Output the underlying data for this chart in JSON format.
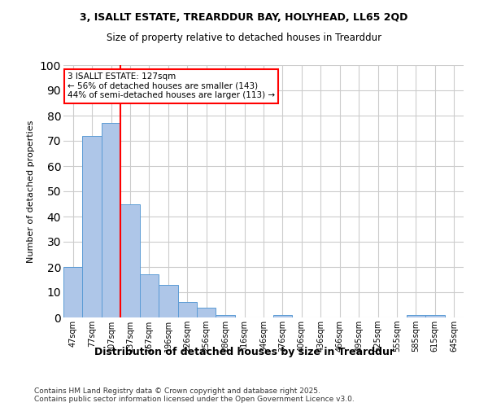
{
  "title1": "3, ISALLT ESTATE, TREARDDUR BAY, HOLYHEAD, LL65 2QD",
  "title2": "Size of property relative to detached houses in Trearddur",
  "xlabel": "Distribution of detached houses by size in Trearddur",
  "ylabel": "Number of detached properties",
  "bin_labels": [
    "47sqm",
    "77sqm",
    "107sqm",
    "137sqm",
    "167sqm",
    "196sqm",
    "226sqm",
    "256sqm",
    "286sqm",
    "316sqm",
    "346sqm",
    "376sqm",
    "406sqm",
    "436sqm",
    "466sqm",
    "495sqm",
    "525sqm",
    "555sqm",
    "585sqm",
    "615sqm",
    "645sqm"
  ],
  "bar_heights": [
    20,
    72,
    77,
    45,
    17,
    13,
    6,
    4,
    1,
    0,
    0,
    1,
    0,
    0,
    0,
    0,
    0,
    0,
    1,
    1,
    0
  ],
  "bar_color": "#aec6e8",
  "bar_edge_color": "#5b9bd5",
  "vline_color": "red",
  "vline_x_index": 2.5,
  "annotation_text": "3 ISALLT ESTATE: 127sqm\n← 56% of detached houses are smaller (143)\n44% of semi-detached houses are larger (113) →",
  "annotation_box_color": "white",
  "annotation_box_edge": "red",
  "ylim": [
    0,
    100
  ],
  "yticks": [
    0,
    10,
    20,
    30,
    40,
    50,
    60,
    70,
    80,
    90,
    100
  ],
  "grid_color": "#cccccc",
  "footer": "Contains HM Land Registry data © Crown copyright and database right 2025.\nContains public sector information licensed under the Open Government Licence v3.0.",
  "background_color": "#ffffff"
}
